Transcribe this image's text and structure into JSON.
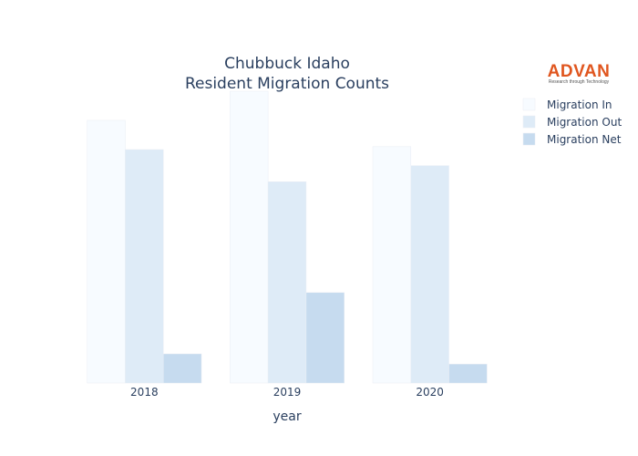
{
  "chart_data": {
    "type": "bar",
    "title_lines": [
      "Chubbuck Idaho",
      "Resident Migration Counts"
    ],
    "xlabel": "year",
    "ylabel": "",
    "categories": [
      "2018",
      "2019",
      "2020"
    ],
    "ylim": [
      0,
      1000
    ],
    "grid": false,
    "legend_position": "top-right",
    "series": [
      {
        "name": "Migration In",
        "values": [
          900,
          1000,
          810
        ],
        "color": "#f7fbff"
      },
      {
        "name": "Migration Out",
        "values": [
          800,
          690,
          745
        ],
        "color": "#deebf7"
      },
      {
        "name": "Migration Net",
        "values": [
          100,
          310,
          65
        ],
        "color": "#c6dbef"
      }
    ]
  },
  "logo": {
    "text": "ADVAN",
    "tagline": "Research through Technology",
    "color": "#e0561f"
  }
}
